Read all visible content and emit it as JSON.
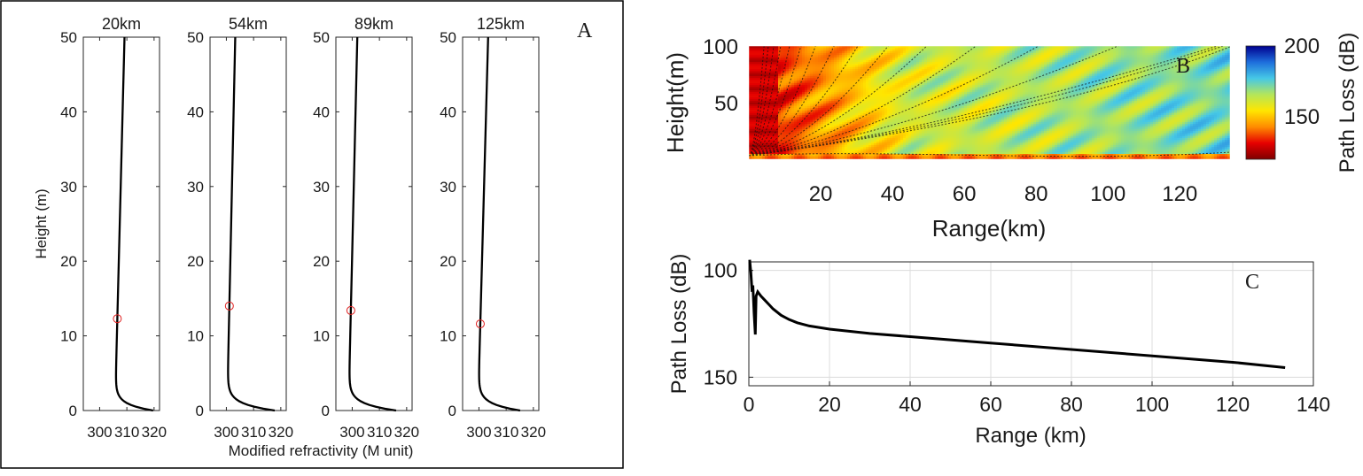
{
  "figure": {
    "panelA_letter": "A",
    "panelB_letter": "B",
    "panelC_letter": "C"
  },
  "chart_data": [
    {
      "id": "A",
      "type": "line",
      "panel": "A",
      "ylabel": "Height (m)",
      "xlabel": "Modified refractivity (M unit)",
      "ylim": [
        0,
        50
      ],
      "yticks": [
        "0",
        "10",
        "20",
        "30",
        "40",
        "50"
      ],
      "subplots": [
        {
          "title": "20km",
          "xlim": [
            294,
            322
          ],
          "xticks": [
            "300",
            "310",
            "320"
          ],
          "profile": {
            "A": 14,
            "ah": 0.85,
            "m": 306.5,
            "hmin": 12.3,
            "k": 0.07
          },
          "marker": {
            "x": 306.5,
            "y": 12.3
          }
        },
        {
          "title": "54km",
          "xlim": [
            294,
            322
          ],
          "xticks": [
            "300",
            "310",
            "320"
          ],
          "profile": {
            "A": 17.5,
            "ah": 0.9,
            "m": 301.1,
            "hmin": 14.0,
            "k": 0.06
          },
          "marker": {
            "x": 301.1,
            "y": 14.0
          }
        },
        {
          "title": "89km",
          "xlim": [
            294,
            322
          ],
          "xticks": [
            "300",
            "310",
            "320"
          ],
          "profile": {
            "A": 17.5,
            "ah": 0.9,
            "m": 299.5,
            "hmin": 13.4,
            "k": 0.065
          },
          "marker": {
            "x": 299.5,
            "y": 13.4
          }
        },
        {
          "title": "125km",
          "xlim": [
            294,
            322
          ],
          "xticks": [
            "300",
            "310",
            "320"
          ],
          "profile": {
            "A": 15.5,
            "ah": 0.9,
            "m": 300.5,
            "hmin": 11.6,
            "k": 0.075
          },
          "marker": {
            "x": 300.5,
            "y": 11.6
          }
        }
      ]
    },
    {
      "id": "B",
      "type": "heatmap",
      "panel": "B",
      "xlabel": "Range(km)",
      "ylabel": "Height(m)",
      "xlim": [
        0,
        134
      ],
      "ylim": [
        0,
        100
      ],
      "xticks": [
        "20",
        "40",
        "60",
        "80",
        "100",
        "120"
      ],
      "yticks": [
        "50",
        "100"
      ],
      "colorbar": {
        "label": "Path Loss (dB)",
        "range": [
          120,
          200
        ],
        "ticks": [
          "150",
          "200"
        ]
      },
      "colormap": [
        "#7f0000",
        "#e60000",
        "#ff8c00",
        "#ffe600",
        "#b4e65a",
        "#46c8e6",
        "#1e6edc",
        "#00008f"
      ]
    },
    {
      "id": "C",
      "type": "line",
      "panel": "C",
      "xlabel": "Range (km)",
      "ylabel": "Path Loss (dB)",
      "xlim": [
        0,
        140
      ],
      "ylim": [
        96,
        154
      ],
      "yreversed": true,
      "xticks": [
        "0",
        "20",
        "40",
        "60",
        "80",
        "100",
        "120",
        "140"
      ],
      "yticks": [
        "100",
        "150"
      ],
      "grid": true,
      "series": [
        {
          "name": "Path Loss",
          "x": [
            0.2,
            0.5,
            0.8,
            1.0,
            1.3,
            1.6,
            1.8,
            2.2,
            3,
            4,
            5,
            6,
            8,
            10,
            12,
            15,
            20,
            30,
            40,
            60,
            80,
            100,
            120,
            133
          ],
          "y": [
            95.0,
            101.0,
            110.0,
            107.0,
            120.0,
            130.0,
            112.0,
            110.0,
            112.0,
            114.0,
            116.0,
            118.0,
            121.0,
            123.0,
            124.5,
            126.0,
            127.5,
            129.5,
            131.0,
            134.0,
            137.0,
            140.0,
            143.0,
            145.5
          ]
        }
      ]
    }
  ]
}
